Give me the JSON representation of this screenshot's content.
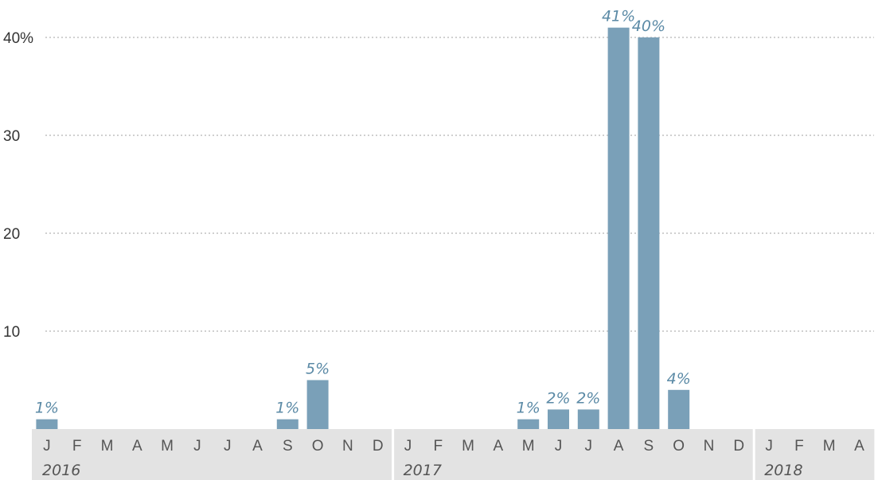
{
  "colors": {
    "bar": "#7aa0b8",
    "bar_label": "#5b8aa6",
    "axis_band": "#e3e3e3",
    "band_separator": "#ffffff",
    "gridline": "#b5b5b5"
  },
  "chart_data": {
    "type": "bar",
    "title": "",
    "xlabel": "",
    "ylabel": "",
    "ylim": [
      0,
      42
    ],
    "yticks": [
      10,
      20,
      30,
      40
    ],
    "ytick_labels": [
      "10",
      "20",
      "30",
      "40%"
    ],
    "grid": true,
    "categories": [
      "Jan 2016",
      "Feb 2016",
      "Mar 2016",
      "Apr 2016",
      "May 2016",
      "Jun 2016",
      "Jul 2016",
      "Aug 2016",
      "Sep 2016",
      "Oct 2016",
      "Nov 2016",
      "Dec 2016",
      "Jan 2017",
      "Feb 2017",
      "Mar 2017",
      "Apr 2017",
      "May 2017",
      "Jun 2017",
      "Jul 2017",
      "Aug 2017",
      "Sep 2017",
      "Oct 2017",
      "Nov 2017",
      "Dec 2017",
      "Jan 2018",
      "Feb 2018",
      "Mar 2018",
      "Apr 2018"
    ],
    "month_labels": [
      "J",
      "F",
      "M",
      "A",
      "M",
      "J",
      "J",
      "A",
      "S",
      "O",
      "N",
      "D",
      "J",
      "F",
      "M",
      "A",
      "M",
      "J",
      "J",
      "A",
      "S",
      "O",
      "N",
      "D",
      "J",
      "F",
      "M",
      "A"
    ],
    "values": [
      1,
      0,
      0,
      0,
      0,
      0,
      0,
      0,
      1,
      5,
      0,
      0,
      0,
      0,
      0,
      0,
      1,
      2,
      2,
      41,
      40,
      4,
      0,
      0,
      0,
      0,
      0,
      0
    ],
    "data_labels": [
      "1%",
      "",
      "",
      "",
      "",
      "",
      "",
      "",
      "1%",
      "5%",
      "",
      "",
      "",
      "",
      "",
      "",
      "1%",
      "2%",
      "2%",
      "41%",
      "40%",
      "4%",
      "",
      "",
      "",
      "",
      "",
      ""
    ],
    "years": [
      {
        "label": "2016",
        "start": 0,
        "count": 12
      },
      {
        "label": "2017",
        "start": 12,
        "count": 12
      },
      {
        "label": "2018",
        "start": 24,
        "count": 4
      }
    ]
  }
}
